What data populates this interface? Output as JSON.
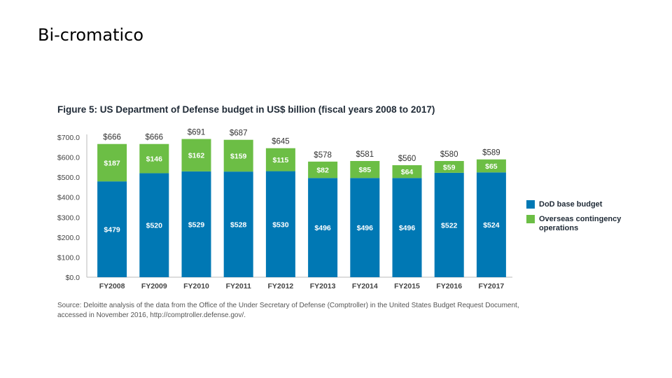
{
  "slide": {
    "title": "Bi-cromatico"
  },
  "chart_data": {
    "type": "bar",
    "stacked": true,
    "title": "Figure 5: US Department of Defense budget in US$ billion (fiscal years 2008 to 2017)",
    "categories": [
      "FY2008",
      "FY2009",
      "FY2010",
      "FY2011",
      "FY2012",
      "FY2013",
      "FY2014",
      "FY2015",
      "FY2016",
      "FY2017"
    ],
    "series": [
      {
        "name": "DoD base budget",
        "color": "#0078b4",
        "values": [
          479,
          520,
          529,
          528,
          530,
          496,
          496,
          496,
          522,
          524
        ],
        "labels": [
          "$479",
          "$520",
          "$529",
          "$528",
          "$530",
          "$496",
          "$496",
          "$496",
          "$522",
          "$524"
        ]
      },
      {
        "name": "Overseas contingency operations",
        "color": "#6cbe45",
        "values": [
          187,
          146,
          162,
          159,
          115,
          82,
          85,
          64,
          59,
          65
        ],
        "labels": [
          "$187",
          "$146",
          "$162",
          "$159",
          "$115",
          "$82",
          "$85",
          "$64",
          "$59",
          "$65"
        ]
      }
    ],
    "totals": [
      "$666",
      "$666",
      "$691",
      "$687",
      "$645",
      "$578",
      "$581",
      "$560",
      "$580",
      "$589"
    ],
    "ylim": [
      0,
      700
    ],
    "yticks": [
      "$0.0",
      "$100.0",
      "$200.0",
      "$300.0",
      "$400.0",
      "$500.0",
      "$600.0",
      "$700.0"
    ],
    "xlabel": "",
    "ylabel": "",
    "legend_position": "right",
    "source": "Source: Deloitte analysis of the data from the Office of the Under Secretary of Defense (Comptroller) in the United States Budget Request Document, accessed in November 2016, http://comptroller.defense.gov/."
  }
}
